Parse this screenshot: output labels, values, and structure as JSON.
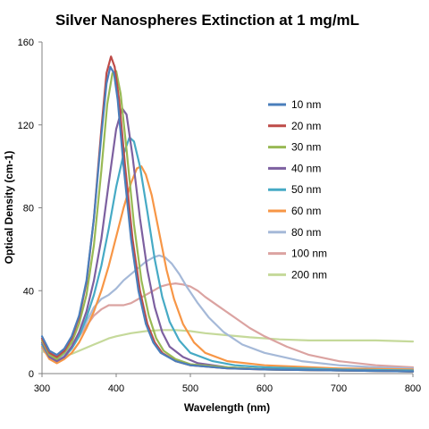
{
  "chart_data": {
    "type": "line",
    "title": "Silver Nanospheres Extinction at 1 mg/mL",
    "xlabel": "Wavelength (nm)",
    "ylabel": "Optical Density (cm-1)",
    "xlim": [
      300,
      800
    ],
    "ylim": [
      0,
      160
    ],
    "x_ticks": [
      300,
      400,
      500,
      600,
      700,
      800
    ],
    "y_ticks": [
      0,
      40,
      80,
      120,
      160
    ],
    "grid": false,
    "legend_position": "right",
    "series": [
      {
        "name": "10 nm",
        "color": "#4a7ebb",
        "points": [
          [
            300,
            18
          ],
          [
            310,
            11
          ],
          [
            320,
            9
          ],
          [
            330,
            12
          ],
          [
            340,
            18
          ],
          [
            350,
            28
          ],
          [
            360,
            45
          ],
          [
            370,
            75
          ],
          [
            380,
            115
          ],
          [
            387,
            140
          ],
          [
            392,
            148
          ],
          [
            397,
            145
          ],
          [
            402,
            132
          ],
          [
            410,
            100
          ],
          [
            420,
            65
          ],
          [
            430,
            40
          ],
          [
            440,
            24
          ],
          [
            450,
            15
          ],
          [
            460,
            10
          ],
          [
            480,
            6
          ],
          [
            500,
            4
          ],
          [
            550,
            2.5
          ],
          [
            600,
            2
          ],
          [
            700,
            1.5
          ],
          [
            800,
            1
          ]
        ]
      },
      {
        "name": "20 nm",
        "color": "#be4b48",
        "points": [
          [
            300,
            17
          ],
          [
            310,
            10
          ],
          [
            320,
            8
          ],
          [
            330,
            11
          ],
          [
            340,
            17
          ],
          [
            350,
            27
          ],
          [
            360,
            44
          ],
          [
            370,
            75
          ],
          [
            380,
            118
          ],
          [
            387,
            145
          ],
          [
            393,
            153
          ],
          [
            398,
            148
          ],
          [
            404,
            132
          ],
          [
            412,
            100
          ],
          [
            422,
            65
          ],
          [
            432,
            40
          ],
          [
            442,
            24
          ],
          [
            452,
            15
          ],
          [
            462,
            10
          ],
          [
            480,
            6
          ],
          [
            500,
            4
          ],
          [
            550,
            2.5
          ],
          [
            600,
            2
          ],
          [
            700,
            1.5
          ],
          [
            800,
            1
          ]
        ]
      },
      {
        "name": "30 nm",
        "color": "#98b954",
        "points": [
          [
            300,
            16
          ],
          [
            310,
            9
          ],
          [
            320,
            7
          ],
          [
            330,
            10
          ],
          [
            340,
            15
          ],
          [
            350,
            24
          ],
          [
            360,
            38
          ],
          [
            370,
            62
          ],
          [
            380,
            98
          ],
          [
            388,
            130
          ],
          [
            395,
            145
          ],
          [
            400,
            146
          ],
          [
            406,
            135
          ],
          [
            414,
            108
          ],
          [
            424,
            72
          ],
          [
            434,
            45
          ],
          [
            444,
            28
          ],
          [
            454,
            17
          ],
          [
            464,
            11
          ],
          [
            480,
            7
          ],
          [
            500,
            4.5
          ],
          [
            550,
            3
          ],
          [
            600,
            2
          ],
          [
            700,
            1.5
          ],
          [
            800,
            1
          ]
        ]
      },
      {
        "name": "40 nm",
        "color": "#7d60a0",
        "points": [
          [
            300,
            15
          ],
          [
            310,
            8
          ],
          [
            320,
            6
          ],
          [
            330,
            8
          ],
          [
            340,
            13
          ],
          [
            350,
            20
          ],
          [
            360,
            30
          ],
          [
            370,
            45
          ],
          [
            380,
            65
          ],
          [
            390,
            92
          ],
          [
            400,
            118
          ],
          [
            408,
            128
          ],
          [
            414,
            125
          ],
          [
            422,
            105
          ],
          [
            432,
            75
          ],
          [
            442,
            50
          ],
          [
            452,
            32
          ],
          [
            462,
            20
          ],
          [
            472,
            13
          ],
          [
            490,
            8
          ],
          [
            510,
            5
          ],
          [
            550,
            3
          ],
          [
            600,
            2
          ],
          [
            700,
            1.5
          ],
          [
            800,
            1
          ]
        ]
      },
      {
        "name": "50 nm",
        "color": "#46aac5",
        "points": [
          [
            300,
            14
          ],
          [
            310,
            8
          ],
          [
            320,
            6
          ],
          [
            330,
            8
          ],
          [
            340,
            12
          ],
          [
            350,
            18
          ],
          [
            360,
            27
          ],
          [
            370,
            38
          ],
          [
            380,
            52
          ],
          [
            390,
            70
          ],
          [
            400,
            90
          ],
          [
            410,
            106
          ],
          [
            418,
            114
          ],
          [
            424,
            112
          ],
          [
            432,
            100
          ],
          [
            442,
            78
          ],
          [
            452,
            55
          ],
          [
            462,
            37
          ],
          [
            472,
            25
          ],
          [
            485,
            16
          ],
          [
            500,
            10
          ],
          [
            530,
            6
          ],
          [
            560,
            4
          ],
          [
            600,
            3
          ],
          [
            700,
            2
          ],
          [
            800,
            1.5
          ]
        ]
      },
      {
        "name": "60 nm",
        "color": "#f79646",
        "points": [
          [
            300,
            13
          ],
          [
            310,
            7
          ],
          [
            320,
            5
          ],
          [
            330,
            7
          ],
          [
            340,
            10
          ],
          [
            350,
            15
          ],
          [
            360,
            22
          ],
          [
            370,
            30
          ],
          [
            380,
            40
          ],
          [
            390,
            52
          ],
          [
            400,
            66
          ],
          [
            410,
            80
          ],
          [
            420,
            92
          ],
          [
            428,
            99
          ],
          [
            434,
            100
          ],
          [
            440,
            96
          ],
          [
            448,
            86
          ],
          [
            458,
            68
          ],
          [
            468,
            50
          ],
          [
            478,
            36
          ],
          [
            490,
            24
          ],
          [
            505,
            15
          ],
          [
            520,
            10
          ],
          [
            550,
            6
          ],
          [
            600,
            4
          ],
          [
            700,
            2.5
          ],
          [
            800,
            2
          ]
        ]
      },
      {
        "name": "80 nm",
        "color": "#a5b9d8",
        "points": [
          [
            300,
            12
          ],
          [
            310,
            8
          ],
          [
            320,
            7
          ],
          [
            330,
            9
          ],
          [
            340,
            13
          ],
          [
            350,
            18
          ],
          [
            360,
            25
          ],
          [
            370,
            32
          ],
          [
            380,
            36
          ],
          [
            390,
            38
          ],
          [
            400,
            41
          ],
          [
            410,
            45
          ],
          [
            420,
            48
          ],
          [
            430,
            51
          ],
          [
            440,
            54
          ],
          [
            450,
            56
          ],
          [
            458,
            57
          ],
          [
            466,
            56
          ],
          [
            475,
            53
          ],
          [
            485,
            48
          ],
          [
            495,
            42
          ],
          [
            510,
            34
          ],
          [
            525,
            27
          ],
          [
            545,
            20
          ],
          [
            570,
            14
          ],
          [
            600,
            10
          ],
          [
            650,
            6
          ],
          [
            700,
            4
          ],
          [
            750,
            3
          ],
          [
            800,
            2.5
          ]
        ]
      },
      {
        "name": "100 nm",
        "color": "#dba3a1",
        "points": [
          [
            300,
            12
          ],
          [
            310,
            8
          ],
          [
            320,
            7
          ],
          [
            330,
            9
          ],
          [
            340,
            13
          ],
          [
            350,
            18
          ],
          [
            360,
            23
          ],
          [
            370,
            28
          ],
          [
            380,
            31
          ],
          [
            390,
            33
          ],
          [
            400,
            33
          ],
          [
            410,
            33
          ],
          [
            420,
            34
          ],
          [
            430,
            36
          ],
          [
            440,
            38
          ],
          [
            450,
            40
          ],
          [
            460,
            42
          ],
          [
            470,
            43
          ],
          [
            480,
            43.5
          ],
          [
            490,
            43
          ],
          [
            500,
            42
          ],
          [
            510,
            40
          ],
          [
            520,
            37
          ],
          [
            540,
            32
          ],
          [
            560,
            27
          ],
          [
            580,
            22
          ],
          [
            600,
            18
          ],
          [
            630,
            13
          ],
          [
            660,
            9
          ],
          [
            700,
            6
          ],
          [
            750,
            4
          ],
          [
            800,
            3
          ]
        ]
      },
      {
        "name": "200 nm",
        "color": "#c5d99a",
        "points": [
          [
            300,
            11
          ],
          [
            310,
            9
          ],
          [
            320,
            8
          ],
          [
            330,
            8.5
          ],
          [
            340,
            9.5
          ],
          [
            350,
            11
          ],
          [
            360,
            12.5
          ],
          [
            370,
            14
          ],
          [
            380,
            15.5
          ],
          [
            390,
            17
          ],
          [
            400,
            18
          ],
          [
            420,
            19.5
          ],
          [
            440,
            20.5
          ],
          [
            460,
            21
          ],
          [
            480,
            21
          ],
          [
            500,
            20.5
          ],
          [
            520,
            19.5
          ],
          [
            550,
            18.5
          ],
          [
            580,
            17.5
          ],
          [
            620,
            16.5
          ],
          [
            660,
            16
          ],
          [
            700,
            16
          ],
          [
            750,
            16
          ],
          [
            800,
            15.5
          ]
        ]
      }
    ]
  }
}
